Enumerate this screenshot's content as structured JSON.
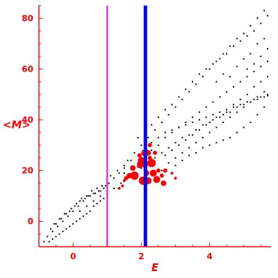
{
  "chart_data": {
    "type": "scatter",
    "title": "",
    "xlabel": "E",
    "ylabel": "<M>",
    "xlim": [
      -1,
      5.8
    ],
    "ylim": [
      -10,
      85
    ],
    "xticks": [
      0,
      2,
      4
    ],
    "yticks": [
      0,
      20,
      40,
      60,
      80
    ],
    "axis_color": "#ff0000",
    "vlines": [
      {
        "x": 1.0,
        "color": "#ff00ff"
      },
      {
        "x": 2.12,
        "color": "#0000ff"
      }
    ],
    "series": [
      {
        "color": "#000000",
        "marker": "small-dot",
        "points": [
          [
            -0.85,
            -8
          ],
          [
            -0.7,
            -8
          ],
          [
            -0.6,
            -7
          ],
          [
            -0.5,
            -6
          ],
          [
            -0.4,
            -5
          ],
          [
            -0.3,
            -4
          ],
          [
            -0.2,
            -3
          ],
          [
            -0.1,
            -2
          ],
          [
            0,
            -1
          ],
          [
            0.1,
            0
          ],
          [
            0.2,
            1
          ],
          [
            0.3,
            2
          ],
          [
            0.4,
            3
          ],
          [
            0.5,
            4
          ],
          [
            0.6,
            6
          ],
          [
            0.7,
            7
          ],
          [
            0.8,
            8
          ],
          [
            0.9,
            9
          ],
          [
            -0.75,
            -6
          ],
          [
            -0.6,
            -4
          ],
          [
            -0.45,
            -2
          ],
          [
            -0.3,
            0
          ],
          [
            -0.15,
            2
          ],
          [
            0,
            4
          ],
          [
            0.15,
            6
          ],
          [
            0.3,
            8
          ],
          [
            0.45,
            10
          ],
          [
            0.6,
            11
          ],
          [
            0.75,
            12
          ],
          [
            0.9,
            13
          ],
          [
            1.05,
            15
          ],
          [
            1.2,
            17
          ],
          [
            1.35,
            19
          ],
          [
            1.5,
            21
          ],
          [
            -0.5,
            -1
          ],
          [
            -0.35,
            1
          ],
          [
            -0.2,
            3
          ],
          [
            -0.05,
            5
          ],
          [
            0.1,
            7
          ],
          [
            0.25,
            9
          ],
          [
            0.4,
            10
          ],
          [
            0.55,
            12
          ],
          [
            0.7,
            13
          ],
          [
            0.85,
            14
          ],
          [
            1.0,
            15
          ],
          [
            -0.65,
            -3
          ],
          [
            -0.55,
            -1
          ],
          [
            -0.4,
            1
          ],
          [
            -0.25,
            3
          ],
          [
            -0.1,
            4
          ],
          [
            0.05,
            6
          ],
          [
            0.2,
            8
          ],
          [
            0.35,
            9
          ],
          [
            0.5,
            10
          ],
          [
            0.65,
            11
          ],
          [
            0.8,
            12
          ],
          [
            0.95,
            14
          ],
          [
            0.2,
            4
          ],
          [
            0.4,
            6
          ],
          [
            0.6,
            8
          ],
          [
            0.8,
            10
          ],
          [
            1.0,
            11
          ],
          [
            1.2,
            13
          ],
          [
            1.4,
            15
          ],
          [
            1.6,
            17
          ],
          [
            1.8,
            19
          ],
          [
            2.0,
            21
          ],
          [
            2.2,
            23
          ],
          [
            2.4,
            25
          ],
          [
            2.6,
            27
          ],
          [
            2.8,
            29
          ],
          [
            3.0,
            31
          ],
          [
            3.2,
            33
          ],
          [
            3.4,
            34
          ],
          [
            3.6,
            36
          ],
          [
            3.8,
            38
          ],
          [
            4.0,
            39
          ],
          [
            4.2,
            41
          ],
          [
            4.4,
            42
          ],
          [
            4.6,
            43
          ],
          [
            4.8,
            45
          ],
          [
            5.0,
            46
          ],
          [
            5.2,
            47
          ],
          [
            5.4,
            48
          ],
          [
            5.6,
            49
          ],
          [
            5.7,
            50
          ],
          [
            1.1,
            18
          ],
          [
            1.3,
            20
          ],
          [
            1.5,
            22
          ],
          [
            1.7,
            24
          ],
          [
            1.9,
            26
          ],
          [
            2.1,
            29
          ],
          [
            2.3,
            31
          ],
          [
            2.5,
            33
          ],
          [
            2.7,
            35
          ],
          [
            2.9,
            36
          ],
          [
            3.1,
            37
          ],
          [
            3.3,
            38
          ],
          [
            3.5,
            39
          ],
          [
            3.7,
            40
          ],
          [
            3.9,
            41
          ],
          [
            4.1,
            42
          ],
          [
            4.3,
            43
          ],
          [
            4.5,
            44
          ],
          [
            4.7,
            45
          ],
          [
            4.9,
            46
          ],
          [
            5.1,
            47
          ],
          [
            5.3,
            48
          ],
          [
            5.5,
            49
          ],
          [
            5.7,
            49.5
          ],
          [
            1.5,
            19
          ],
          [
            1.7,
            21
          ],
          [
            1.9,
            23
          ],
          [
            2.1,
            26
          ],
          [
            2.3,
            28
          ],
          [
            2.5,
            30
          ],
          [
            2.7,
            33
          ],
          [
            2.9,
            35
          ],
          [
            3.1,
            37
          ],
          [
            3.3,
            39
          ],
          [
            3.5,
            41
          ],
          [
            3.7,
            43
          ],
          [
            3.9,
            45
          ],
          [
            4.1,
            47
          ],
          [
            4.3,
            49
          ],
          [
            4.5,
            51
          ],
          [
            4.7,
            53
          ],
          [
            4.9,
            55
          ],
          [
            5.1,
            57
          ],
          [
            5.3,
            59
          ],
          [
            5.5,
            61
          ],
          [
            5.7,
            63
          ],
          [
            1.6,
            24
          ],
          [
            1.8,
            27
          ],
          [
            2.0,
            30
          ],
          [
            2.2,
            33
          ],
          [
            2.4,
            36
          ],
          [
            2.6,
            39
          ],
          [
            2.8,
            42
          ],
          [
            3.0,
            45
          ],
          [
            3.2,
            48
          ],
          [
            3.4,
            51
          ],
          [
            3.6,
            54
          ],
          [
            3.8,
            57
          ],
          [
            4.0,
            60
          ],
          [
            4.2,
            63
          ],
          [
            4.4,
            66
          ],
          [
            4.6,
            69
          ],
          [
            4.8,
            72
          ],
          [
            5.0,
            74
          ],
          [
            5.2,
            77
          ],
          [
            5.4,
            80
          ],
          [
            5.6,
            83
          ],
          [
            1.9,
            33
          ],
          [
            2.1,
            35
          ],
          [
            2.3,
            38
          ],
          [
            2.5,
            41
          ],
          [
            2.7,
            44
          ],
          [
            2.9,
            46
          ],
          [
            3.1,
            49
          ],
          [
            3.3,
            52
          ],
          [
            3.5,
            55
          ],
          [
            3.7,
            58
          ],
          [
            3.9,
            60
          ],
          [
            4.1,
            62
          ],
          [
            4.3,
            64
          ],
          [
            4.5,
            66
          ],
          [
            4.7,
            69
          ],
          [
            4.9,
            71
          ],
          [
            5.1,
            73
          ],
          [
            5.3,
            75
          ],
          [
            5.5,
            78
          ],
          [
            5.7,
            81
          ],
          [
            2.6,
            20
          ],
          [
            2.8,
            23
          ],
          [
            3.0,
            25
          ],
          [
            3.2,
            27
          ],
          [
            3.4,
            29
          ],
          [
            3.6,
            31
          ],
          [
            3.8,
            33
          ],
          [
            4.0,
            35
          ],
          [
            4.2,
            37
          ],
          [
            4.4,
            39
          ],
          [
            4.6,
            41
          ],
          [
            4.8,
            43
          ],
          [
            5.0,
            45
          ],
          [
            5.2,
            47
          ],
          [
            5.4,
            49
          ],
          [
            5.6,
            51
          ],
          [
            3.0,
            22
          ],
          [
            3.2,
            24
          ],
          [
            3.4,
            26
          ],
          [
            3.6,
            27
          ],
          [
            3.8,
            29
          ],
          [
            4.0,
            30
          ],
          [
            4.2,
            31
          ],
          [
            4.4,
            32
          ],
          [
            4.6,
            33
          ],
          [
            4.8,
            35
          ],
          [
            5.0,
            37
          ],
          [
            5.2,
            39
          ],
          [
            5.4,
            42
          ],
          [
            5.6,
            45
          ],
          [
            4.2,
            55
          ],
          [
            4.4,
            58
          ],
          [
            4.6,
            57
          ],
          [
            4.8,
            61
          ],
          [
            5.0,
            64
          ],
          [
            5.2,
            66
          ],
          [
            5.4,
            70
          ],
          [
            5.6,
            72
          ],
          [
            5.7,
            68
          ],
          [
            5.5,
            65
          ],
          [
            5.3,
            62
          ],
          [
            5.1,
            60
          ],
          [
            2.7,
            26
          ],
          [
            2.9,
            28
          ],
          [
            3.1,
            30
          ],
          [
            3.3,
            32
          ],
          [
            3.5,
            34
          ],
          [
            3.7,
            36
          ],
          [
            3.9,
            38
          ],
          [
            4.1,
            40
          ],
          [
            4.3,
            41
          ],
          [
            4.5,
            43
          ],
          [
            4.7,
            46
          ],
          [
            4.9,
            48
          ],
          [
            5.1,
            50
          ],
          [
            5.3,
            53
          ],
          [
            5.5,
            55
          ],
          [
            5.7,
            57
          ]
        ]
      },
      {
        "color": "#ff0000",
        "marker": "bubble",
        "points": [
          [
            2.05,
            16,
            6
          ],
          [
            2.2,
            16,
            5
          ],
          [
            2.45,
            16.5,
            5
          ],
          [
            2.65,
            15,
            4
          ],
          [
            2.35,
            19,
            5
          ],
          [
            2.15,
            19,
            4
          ],
          [
            1.8,
            18,
            6
          ],
          [
            1.65,
            18,
            4
          ],
          [
            1.55,
            17,
            3
          ],
          [
            1.75,
            21,
            4
          ],
          [
            1.95,
            22,
            4
          ],
          [
            2.1,
            22.5,
            5
          ],
          [
            2.3,
            23,
            6
          ],
          [
            2.0,
            24,
            5
          ],
          [
            2.1,
            27,
            5
          ],
          [
            2.2,
            27,
            4
          ],
          [
            2.4,
            27,
            3
          ],
          [
            2.25,
            25,
            3
          ],
          [
            1.95,
            26,
            3
          ],
          [
            2.25,
            30,
            3
          ],
          [
            2.5,
            20,
            3
          ],
          [
            2.7,
            20,
            3
          ],
          [
            2.9,
            19,
            2
          ],
          [
            3.0,
            17,
            2
          ],
          [
            1.45,
            14,
            2
          ],
          [
            1.35,
            13,
            2
          ],
          [
            1.5,
            16,
            2
          ],
          [
            2.6,
            18,
            3
          ]
        ]
      }
    ]
  }
}
